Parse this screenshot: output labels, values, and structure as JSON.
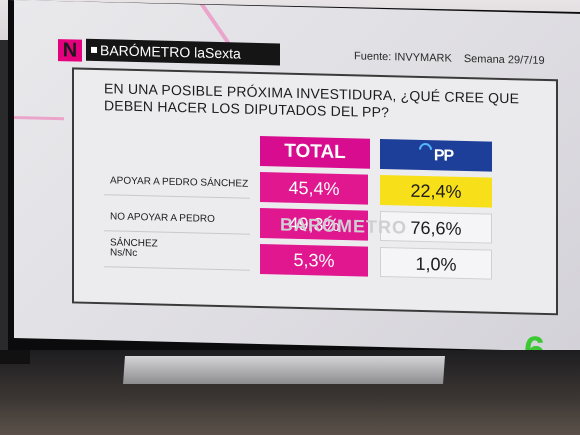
{
  "header": {
    "logo_letter": "N",
    "program": "BARÓMETRO laSexta",
    "source": "Fuente:  INVYMARK",
    "week": "Semana 29/7/19"
  },
  "question": "EN UNA POSIBLE PRÓXIMA INVESTIDURA, ¿QUÉ CREE QUE DEBEN HACER LOS DIPUTADOS DEL PP?",
  "columns": {
    "total": "TOTAL",
    "pp": "PP"
  },
  "rows": [
    {
      "label": "APOYAR A PEDRO SÁNCHEZ",
      "total": "45,4%",
      "pp": "22,4%"
    },
    {
      "label": "NO APOYAR A PEDRO SÁNCHEZ",
      "total": "49,3%",
      "pp": "76,6%"
    },
    {
      "label": "Ns/Nc",
      "total": "5,3%",
      "pp": "1,0%"
    }
  ],
  "watermark": "BARÓMETRO",
  "channel_logo": "6",
  "colors": {
    "magenta": "#e0178f",
    "pp_blue": "#1e3f99",
    "highlight": "#f7e01a",
    "channel_green": "#3cc832"
  }
}
